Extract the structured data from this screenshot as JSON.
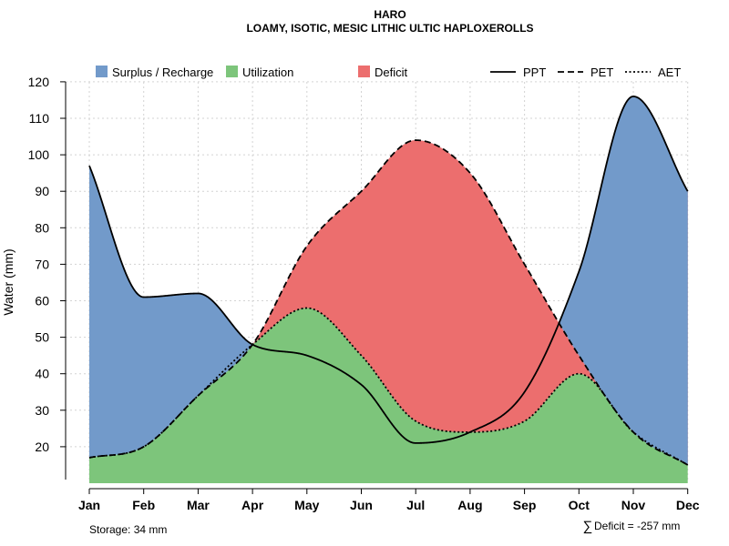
{
  "chart_data": {
    "type": "area",
    "title": "HARO",
    "subtitle": "LOAMY, ISOTIC, MESIC LITHIC ULTIC HAPLOXEROLLS",
    "ylabel": "Water (mm)",
    "xlabel": "",
    "ylim": [
      10,
      120
    ],
    "yticks": [
      20,
      30,
      40,
      50,
      60,
      70,
      80,
      90,
      100,
      110,
      120
    ],
    "grid": true,
    "categories": [
      "Jan",
      "Feb",
      "Mar",
      "Apr",
      "May",
      "Jun",
      "Jul",
      "Aug",
      "Sep",
      "Oct",
      "Nov",
      "Dec"
    ],
    "series": [
      {
        "name": "PPT",
        "style": "solid",
        "values": [
          97,
          61,
          62,
          48,
          45,
          37,
          21,
          24,
          35,
          68,
          116,
          90
        ]
      },
      {
        "name": "PET",
        "style": "dashed",
        "values": [
          17,
          20,
          34,
          48,
          75,
          90,
          104,
          95,
          70,
          45,
          24,
          15
        ]
      },
      {
        "name": "AET",
        "style": "dotted",
        "values": [
          17,
          20,
          34,
          48,
          58,
          45,
          27,
          24,
          27,
          40,
          24,
          15
        ]
      }
    ],
    "fill_legend": [
      {
        "name": "Surplus / Recharge",
        "color": "#729ACA"
      },
      {
        "name": "Utilization",
        "color": "#7DC57B"
      },
      {
        "name": "Deficit",
        "color": "#EC6E6E"
      }
    ],
    "legend_position": "top",
    "annotations": {
      "storage": "Storage: 34 mm",
      "deficit_symbol": "∑",
      "deficit": "Deficit = -257 mm"
    }
  }
}
